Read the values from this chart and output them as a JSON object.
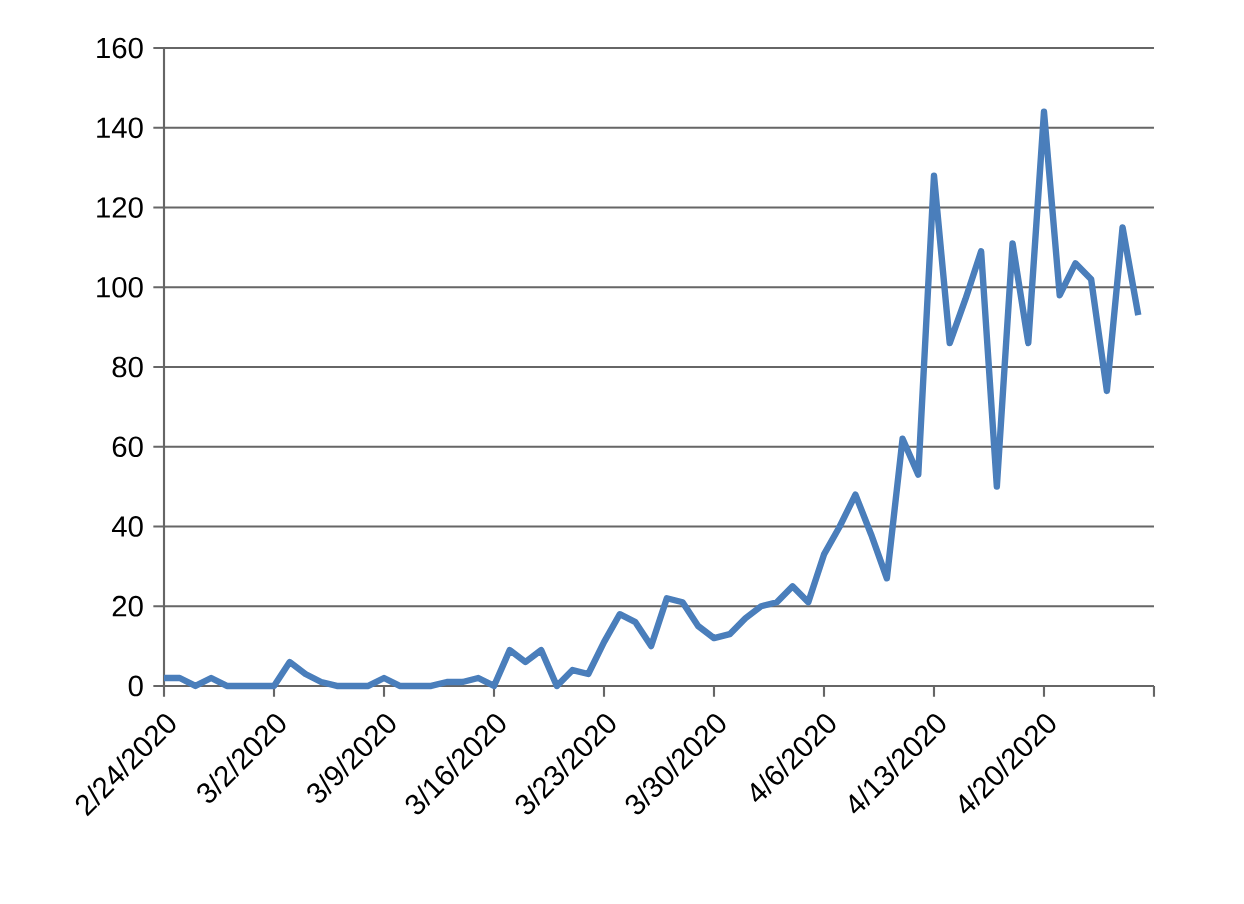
{
  "chart_data": {
    "type": "line",
    "x": [
      "2020-02-24",
      "2020-02-25",
      "2020-02-26",
      "2020-02-27",
      "2020-02-28",
      "2020-02-29",
      "2020-03-01",
      "2020-03-02",
      "2020-03-03",
      "2020-03-04",
      "2020-03-05",
      "2020-03-06",
      "2020-03-07",
      "2020-03-08",
      "2020-03-09",
      "2020-03-10",
      "2020-03-11",
      "2020-03-12",
      "2020-03-13",
      "2020-03-14",
      "2020-03-15",
      "2020-03-16",
      "2020-03-17",
      "2020-03-18",
      "2020-03-19",
      "2020-03-20",
      "2020-03-21",
      "2020-03-22",
      "2020-03-23",
      "2020-03-24",
      "2020-03-25",
      "2020-03-26",
      "2020-03-27",
      "2020-03-28",
      "2020-03-29",
      "2020-03-30",
      "2020-03-31",
      "2020-04-01",
      "2020-04-02",
      "2020-04-03",
      "2020-04-04",
      "2020-04-05",
      "2020-04-06",
      "2020-04-07",
      "2020-04-08",
      "2020-04-09",
      "2020-04-10",
      "2020-04-11",
      "2020-04-12",
      "2020-04-13",
      "2020-04-14",
      "2020-04-15",
      "2020-04-16",
      "2020-04-17",
      "2020-04-18",
      "2020-04-19",
      "2020-04-20",
      "2020-04-21",
      "2020-04-22",
      "2020-04-23",
      "2020-04-24",
      "2020-04-25",
      "2020-04-26"
    ],
    "series": [
      {
        "color": "#4a7ebb",
        "values": [
          2,
          2,
          0,
          2,
          0,
          0,
          0,
          0,
          6,
          3,
          1,
          0,
          0,
          0,
          2,
          0,
          0,
          0,
          1,
          1,
          2,
          0,
          9,
          6,
          9,
          0,
          4,
          3,
          11,
          18,
          16,
          10,
          22,
          21,
          15,
          12,
          13,
          17,
          20,
          21,
          25,
          21,
          33,
          40,
          48,
          38,
          27,
          62,
          53,
          128,
          86,
          97,
          109,
          50,
          111,
          86,
          144,
          98,
          106,
          102,
          74,
          115,
          93
        ]
      }
    ],
    "xlim": [
      "2020-02-24",
      "2020-04-27"
    ],
    "xticks": [
      {
        "value": "2020-02-24",
        "label": "2/24/2020"
      },
      {
        "value": "2020-03-02",
        "label": "3/2/2020"
      },
      {
        "value": "2020-03-09",
        "label": "3/9/2020"
      },
      {
        "value": "2020-03-16",
        "label": "3/16/2020"
      },
      {
        "value": "2020-03-23",
        "label": "3/23/2020"
      },
      {
        "value": "2020-03-30",
        "label": "3/30/2020"
      },
      {
        "value": "2020-04-06",
        "label": "4/6/2020"
      },
      {
        "value": "2020-04-13",
        "label": "4/13/2020"
      },
      {
        "value": "2020-04-20",
        "label": "4/20/2020"
      },
      {
        "value": "2020-04-27",
        "label": null
      }
    ],
    "ylim": [
      0,
      160
    ],
    "yticks": [
      0,
      20,
      40,
      60,
      80,
      100,
      120,
      140,
      160
    ],
    "grid": "y",
    "line_style": "solid"
  }
}
